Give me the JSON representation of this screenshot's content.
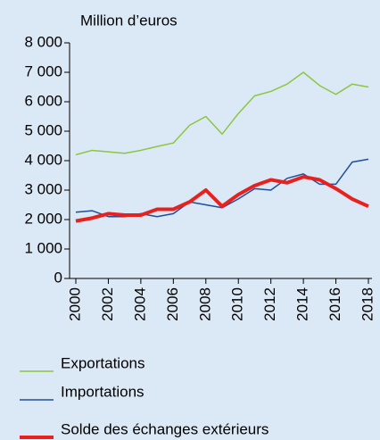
{
  "chart_data": {
    "type": "line",
    "y_axis_label": "Million d’euros",
    "x": [
      2000,
      2001,
      2002,
      2003,
      2004,
      2005,
      2006,
      2007,
      2008,
      2009,
      2010,
      2011,
      2012,
      2013,
      2014,
      2015,
      2016,
      2017,
      2018
    ],
    "series": [
      {
        "name": "Exportations",
        "color": "#8dc63f",
        "width": 1.5,
        "values": [
          4200,
          4350,
          4300,
          4250,
          4350,
          4480,
          4600,
          5200,
          5500,
          4900,
          5600,
          6200,
          6350,
          6600,
          7000,
          6550,
          6250,
          6600,
          6500
        ]
      },
      {
        "name": "Importations",
        "color": "#1f4e9c",
        "width": 1.5,
        "values": [
          2250,
          2300,
          2100,
          2100,
          2200,
          2100,
          2200,
          2600,
          2500,
          2400,
          2700,
          3050,
          3000,
          3400,
          3550,
          3200,
          3200,
          3950,
          4050
        ]
      },
      {
        "name": "Solde des échanges extérieurs",
        "color": "#e8211e",
        "width": 4,
        "values": [
          1950,
          2050,
          2200,
          2150,
          2150,
          2350,
          2350,
          2600,
          3000,
          2450,
          2850,
          3150,
          3350,
          3250,
          3450,
          3350,
          3050,
          2700,
          2450
        ]
      }
    ],
    "xlim": [
      2000,
      2018
    ],
    "xticks": [
      2000,
      2002,
      2004,
      2006,
      2008,
      2010,
      2012,
      2014,
      2016,
      2018
    ],
    "ylim": [
      0,
      8000
    ],
    "yticks": [
      0,
      {
        "value": 1000,
        "label": "1 000"
      },
      {
        "value": 2000,
        "label": "2 000"
      },
      {
        "value": 3000,
        "label": "3 000"
      },
      {
        "value": 4000,
        "label": "4 000"
      },
      {
        "value": 5000,
        "label": "5 000"
      },
      {
        "value": 6000,
        "label": "6 000"
      },
      {
        "value": 7000,
        "label": "7 000"
      },
      {
        "value": 8000,
        "label": "8 000"
      }
    ],
    "grid": false
  }
}
